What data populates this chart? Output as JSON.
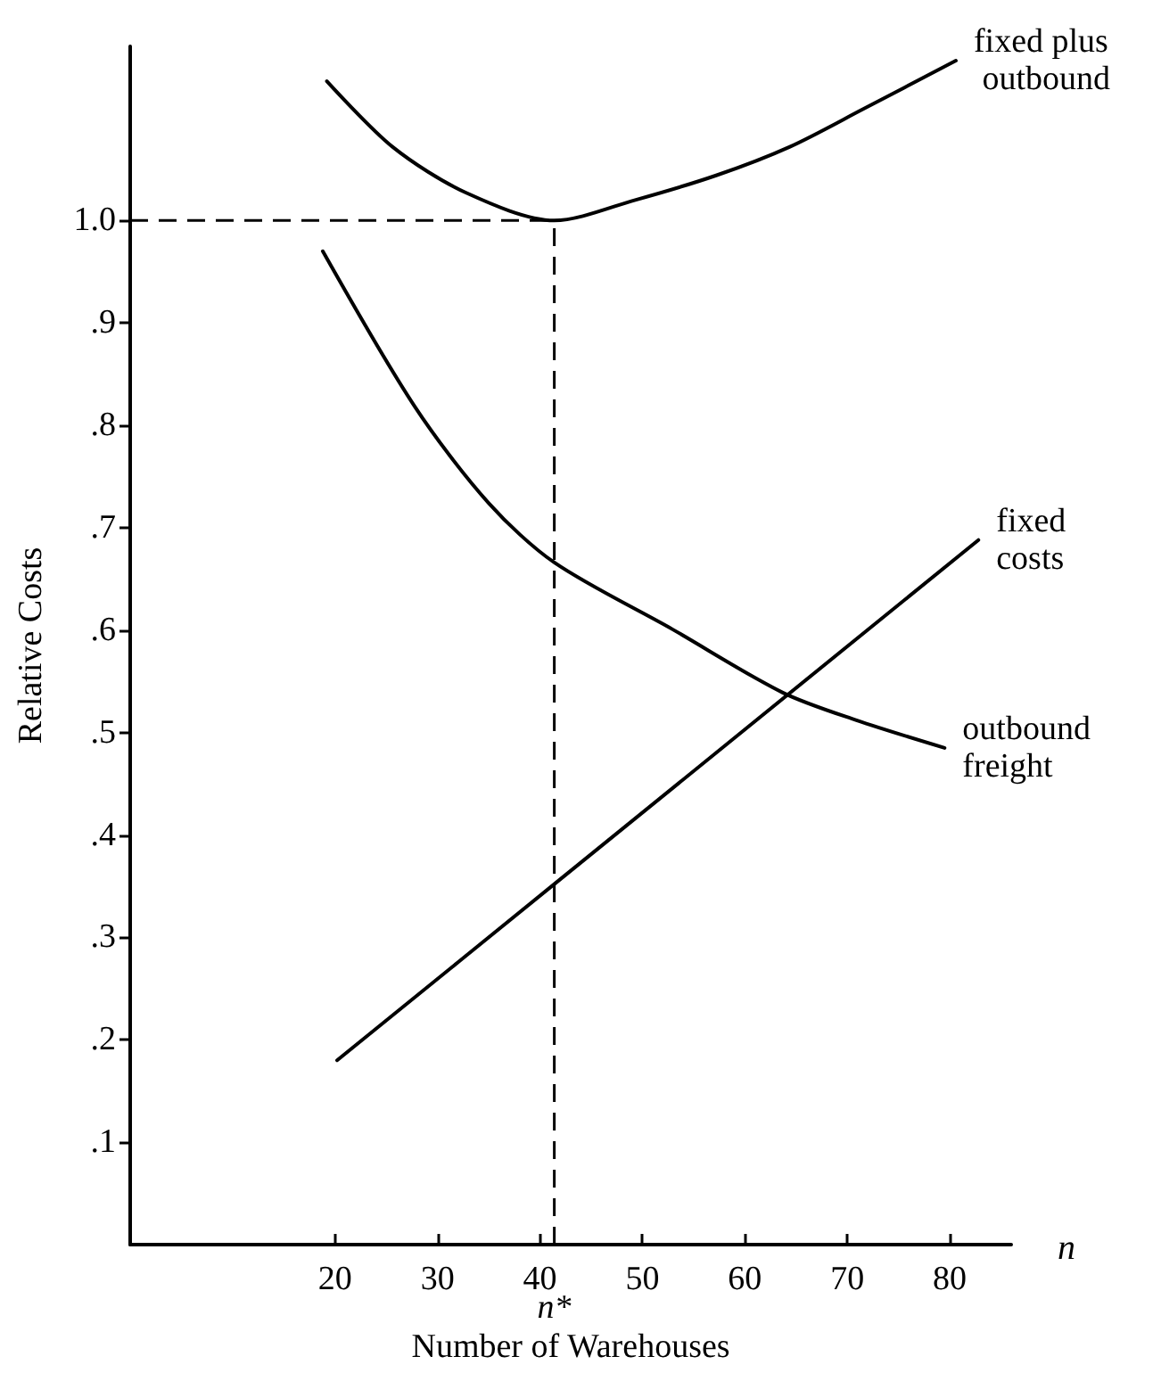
{
  "chart_data": {
    "type": "line",
    "xlabel": "Number of Warehouses",
    "ylabel": "Relative Costs",
    "xlim": [
      0,
      86
    ],
    "xticks": [
      20,
      30,
      40,
      50,
      60,
      70,
      80
    ],
    "ylim": [
      0,
      1.17
    ],
    "yticks": [
      {
        "value": 0.1,
        "label": ".1"
      },
      {
        "value": 0.2,
        "label": ".2"
      },
      {
        "value": 0.3,
        "label": ".3"
      },
      {
        "value": 0.4,
        "label": ".4"
      },
      {
        "value": 0.5,
        "label": ".5"
      },
      {
        "value": 0.6,
        "label": ".6"
      },
      {
        "value": 0.7,
        "label": ".7"
      },
      {
        "value": 0.8,
        "label": ".8"
      },
      {
        "value": 0.9,
        "label": ".9"
      },
      {
        "value": 1.0,
        "label": "1.0"
      }
    ],
    "series": [
      {
        "name": "fixed plus outbound",
        "color": "#000000",
        "x": [
          19.2,
          25.6,
          32.8,
          41.4,
          49.3,
          57.2,
          64.4,
          71.6,
          80.6
        ],
        "values": [
          1.136,
          1.072,
          1.027,
          1.0,
          1.02,
          1.044,
          1.072,
          1.109,
          1.156
        ]
      },
      {
        "name": "outbound freight",
        "color": "#000000",
        "x": [
          18.8,
          27.8,
          35,
          41.4,
          52.9,
          63.7,
          70.9,
          79.5
        ],
        "values": [
          0.97,
          0.818,
          0.724,
          0.666,
          0.601,
          0.539,
          0.512,
          0.485
        ]
      },
      {
        "name": "fixed costs",
        "color": "#000000",
        "x": [
          20.2,
          41.4,
          82.8
        ],
        "values": [
          0.18,
          0.352,
          0.688
        ]
      }
    ],
    "ref_lines": [
      {
        "axis": "x",
        "value": 41.4,
        "label": "n*",
        "line_style": "dashed"
      },
      {
        "axis": "y",
        "value": 1.0,
        "line_style": "dashed"
      }
    ],
    "annotations": [
      "n"
    ],
    "grid": false,
    "legend": false,
    "marker": "none",
    "line_style": "solid"
  }
}
